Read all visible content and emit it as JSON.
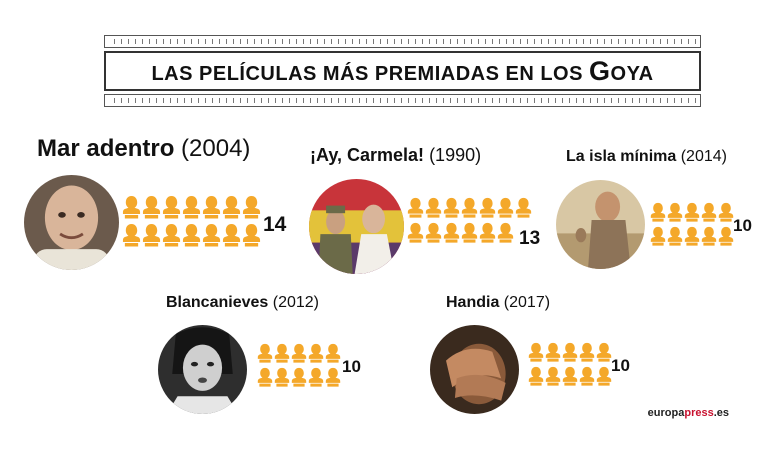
{
  "title": {
    "pre": "LAS PELÍCULAS MÁS PREMIADAS EN LOS ",
    "big": "G",
    "post": "OYA"
  },
  "brand": {
    "pre": "europa",
    "accent": "press",
    "post": ".es"
  },
  "colors": {
    "icon": "#F4A82A",
    "frame": "#333333",
    "brand_accent": "#C8102E"
  },
  "icon_name": "goya-statuette-icon",
  "chart_data": {
    "type": "pictogram",
    "unit": "Premios Goya",
    "categories": [
      "Mar adentro",
      "¡Ay, Carmela!",
      "La isla mínima",
      "Blancanieves",
      "Handia"
    ],
    "years": [
      "(2004)",
      "(1990)",
      "(2014)",
      "(2012)",
      "(2017)"
    ],
    "values": [
      14,
      13,
      10,
      10,
      10
    ],
    "value_labels": [
      "14",
      "13",
      "10",
      "10",
      "10"
    ]
  }
}
